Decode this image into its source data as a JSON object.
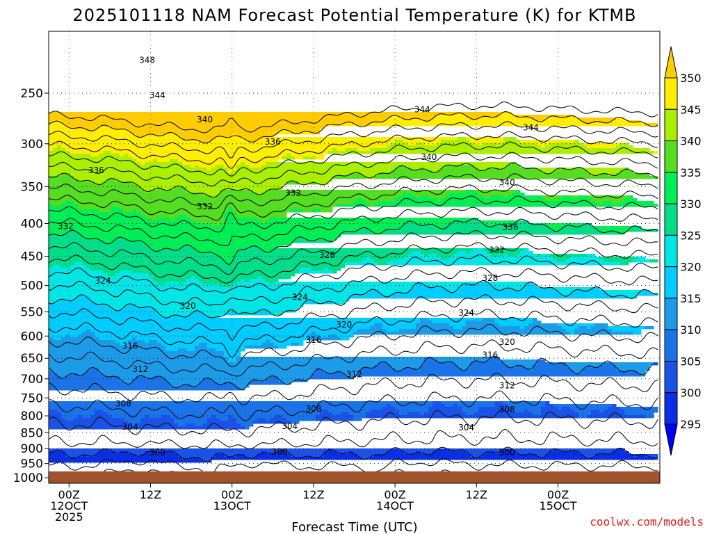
{
  "chart_data": {
    "type": "heatmap",
    "title": "2025101118 NAM Forecast Potential Temperature (K) for KTMB",
    "xlabel": "Forecast Time (UTC)",
    "ylabel": "",
    "credit": "coolwx.com/models",
    "x_range_hours": [
      -3,
      87
    ],
    "x_ticks": [
      {
        "hour": 0,
        "lines": [
          "00Z",
          "12OCT",
          "2025"
        ]
      },
      {
        "hour": 12,
        "lines": [
          "12Z"
        ]
      },
      {
        "hour": 24,
        "lines": [
          "00Z",
          "13OCT"
        ]
      },
      {
        "hour": 36,
        "lines": [
          "12Z"
        ]
      },
      {
        "hour": 48,
        "lines": [
          "00Z",
          "14OCT"
        ]
      },
      {
        "hour": 60,
        "lines": [
          "12Z"
        ]
      },
      {
        "hour": 72,
        "lines": [
          "00Z",
          "15OCT"
        ]
      }
    ],
    "y_axis": "pressure (hPa), logarithmic, decreasing upward",
    "y_range_hpa": [
      1020,
      200
    ],
    "y_ticks": [
      250,
      300,
      350,
      400,
      450,
      500,
      550,
      600,
      650,
      700,
      750,
      800,
      850,
      900,
      950,
      1000
    ],
    "colorbar": {
      "levels": [
        295,
        300,
        305,
        310,
        315,
        320,
        325,
        330,
        335,
        340,
        345,
        350
      ],
      "colors": [
        "#0000ff",
        "#0a2ee6",
        "#1a52e8",
        "#1a73e8",
        "#1c9ce8",
        "#00ccff",
        "#00e6e6",
        "#00dd88",
        "#00ee55",
        "#55dd22",
        "#aaee00",
        "#ffee00",
        "#ffcc00"
      ]
    },
    "contour_interval_K": 2,
    "contour_labels": [
      {
        "value": "348",
        "hour": 11.5,
        "p": 222
      },
      {
        "value": "344",
        "hour": 13,
        "p": 252
      },
      {
        "value": "340",
        "hour": 20,
        "p": 275
      },
      {
        "value": "336",
        "hour": 30,
        "p": 298
      },
      {
        "value": "336",
        "hour": 4,
        "p": 330
      },
      {
        "value": "332",
        "hour": 33,
        "p": 358
      },
      {
        "value": "332",
        "hour": 20,
        "p": 376
      },
      {
        "value": "332",
        "hour": -0.5,
        "p": 404
      },
      {
        "value": "344",
        "hour": 52,
        "p": 265
      },
      {
        "value": "344",
        "hour": 68,
        "p": 283
      },
      {
        "value": "340",
        "hour": 53,
        "p": 315
      },
      {
        "value": "340",
        "hour": 64.5,
        "p": 345
      },
      {
        "value": "336",
        "hour": 65,
        "p": 405
      },
      {
        "value": "332",
        "hour": 63,
        "p": 440
      },
      {
        "value": "328",
        "hour": 38,
        "p": 448
      },
      {
        "value": "328",
        "hour": 62,
        "p": 487
      },
      {
        "value": "324",
        "hour": 5,
        "p": 492
      },
      {
        "value": "324",
        "hour": 34,
        "p": 522
      },
      {
        "value": "324",
        "hour": 58.5,
        "p": 552
      },
      {
        "value": "320",
        "hour": 17.5,
        "p": 538
      },
      {
        "value": "320",
        "hour": 40.5,
        "p": 576
      },
      {
        "value": "320",
        "hour": 64.5,
        "p": 613
      },
      {
        "value": "316",
        "hour": 9,
        "p": 622
      },
      {
        "value": "316",
        "hour": 36,
        "p": 609
      },
      {
        "value": "316",
        "hour": 62,
        "p": 642
      },
      {
        "value": "312",
        "hour": 10.5,
        "p": 676
      },
      {
        "value": "312",
        "hour": 42,
        "p": 689
      },
      {
        "value": "312",
        "hour": 64.5,
        "p": 717
      },
      {
        "value": "308",
        "hour": 8,
        "p": 766
      },
      {
        "value": "308",
        "hour": 36,
        "p": 780
      },
      {
        "value": "308",
        "hour": 64.5,
        "p": 782
      },
      {
        "value": "304",
        "hour": 9,
        "p": 833
      },
      {
        "value": "304",
        "hour": 32.5,
        "p": 830
      },
      {
        "value": "304",
        "hour": 58.5,
        "p": 835
      },
      {
        "value": "300",
        "hour": 13,
        "p": 913
      },
      {
        "value": "300",
        "hour": 31,
        "p": 911
      },
      {
        "value": "300",
        "hour": 64.5,
        "p": 913
      }
    ]
  }
}
